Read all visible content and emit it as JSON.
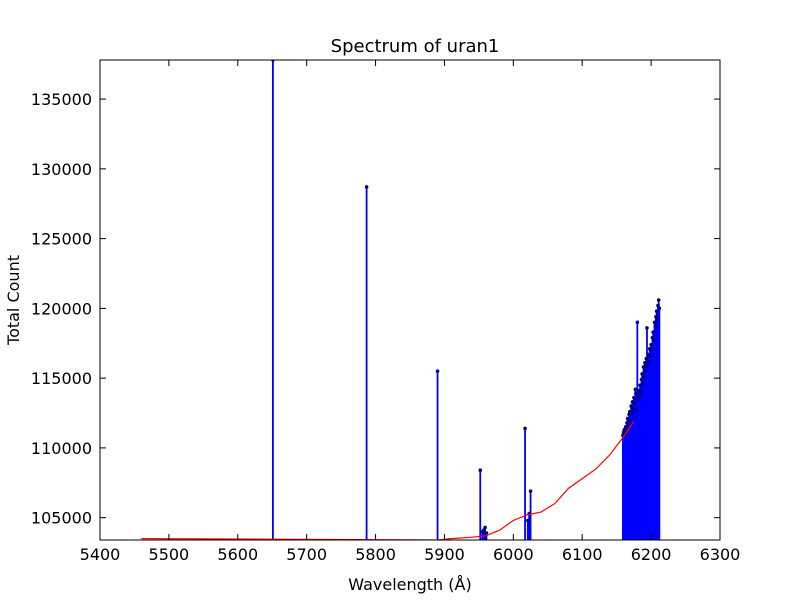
{
  "chart_data": {
    "type": "line",
    "title": "Spectrum of uran1",
    "xlabel": "Wavelength (Å)",
    "ylabel": "Total Count",
    "xlim": [
      5400,
      6300
    ],
    "ylim": [
      103400,
      137800
    ],
    "xticks": [
      5400,
      5500,
      5600,
      5700,
      5800,
      5900,
      6000,
      6100,
      6200,
      6300
    ],
    "yticks": [
      105000,
      110000,
      115000,
      120000,
      125000,
      130000,
      135000
    ],
    "grid": false,
    "legend": "none",
    "series": [
      {
        "style": "stem",
        "color": "#0000ff",
        "marker_color": "#000080",
        "points": [
          [
            5651,
            137800
          ],
          [
            5787,
            128700
          ],
          [
            5890,
            115500
          ],
          [
            5952,
            108400
          ],
          [
            5955,
            104000
          ],
          [
            5957,
            104100
          ],
          [
            5959,
            104300
          ],
          [
            5961,
            103900
          ],
          [
            6017,
            111400
          ],
          [
            6021,
            104800
          ],
          [
            6023,
            105300
          ],
          [
            6025,
            106900
          ],
          [
            6159,
            110900
          ],
          [
            6160,
            111100
          ],
          [
            6161,
            111300
          ],
          [
            6162,
            111000
          ],
          [
            6163,
            111500
          ],
          [
            6164,
            111200
          ],
          [
            6165,
            111800
          ],
          [
            6166,
            112100
          ],
          [
            6167,
            111700
          ],
          [
            6168,
            112400
          ],
          [
            6169,
            112600
          ],
          [
            6170,
            112000
          ],
          [
            6171,
            113000
          ],
          [
            6172,
            112500
          ],
          [
            6173,
            113300
          ],
          [
            6174,
            112800
          ],
          [
            6175,
            113600
          ],
          [
            6176,
            113200
          ],
          [
            6177,
            114200
          ],
          [
            6178,
            113900
          ],
          [
            6179,
            112700
          ],
          [
            6180,
            119000
          ],
          [
            6181,
            113500
          ],
          [
            6182,
            114100
          ],
          [
            6183,
            113700
          ],
          [
            6184,
            114500
          ],
          [
            6185,
            114000
          ],
          [
            6186,
            114900
          ],
          [
            6187,
            115300
          ],
          [
            6188,
            114600
          ],
          [
            6189,
            115800
          ],
          [
            6190,
            115100
          ],
          [
            6191,
            116100
          ],
          [
            6192,
            115500
          ],
          [
            6193,
            116400
          ],
          [
            6194,
            118600
          ],
          [
            6195,
            115900
          ],
          [
            6196,
            116700
          ],
          [
            6197,
            116200
          ],
          [
            6198,
            117100
          ],
          [
            6199,
            116600
          ],
          [
            6200,
            117400
          ],
          [
            6201,
            117000
          ],
          [
            6202,
            117900
          ],
          [
            6203,
            118300
          ],
          [
            6204,
            117700
          ],
          [
            6205,
            119000
          ],
          [
            6206,
            118700
          ],
          [
            6207,
            119400
          ],
          [
            6208,
            119800
          ],
          [
            6209,
            119200
          ],
          [
            6210,
            120200
          ],
          [
            6211,
            120600
          ],
          [
            6212,
            120000
          ]
        ]
      },
      {
        "style": "line",
        "color": "#ff0000",
        "points": [
          [
            5460,
            103500
          ],
          [
            5890,
            103400
          ],
          [
            5910,
            103500
          ],
          [
            5940,
            103600
          ],
          [
            5960,
            103700
          ],
          [
            5980,
            104100
          ],
          [
            6000,
            104800
          ],
          [
            6020,
            105200
          ],
          [
            6040,
            105400
          ],
          [
            6060,
            106000
          ],
          [
            6080,
            107100
          ],
          [
            6100,
            107800
          ],
          [
            6120,
            108500
          ],
          [
            6140,
            109500
          ],
          [
            6160,
            110800
          ],
          [
            6175,
            111900
          ]
        ]
      }
    ]
  }
}
